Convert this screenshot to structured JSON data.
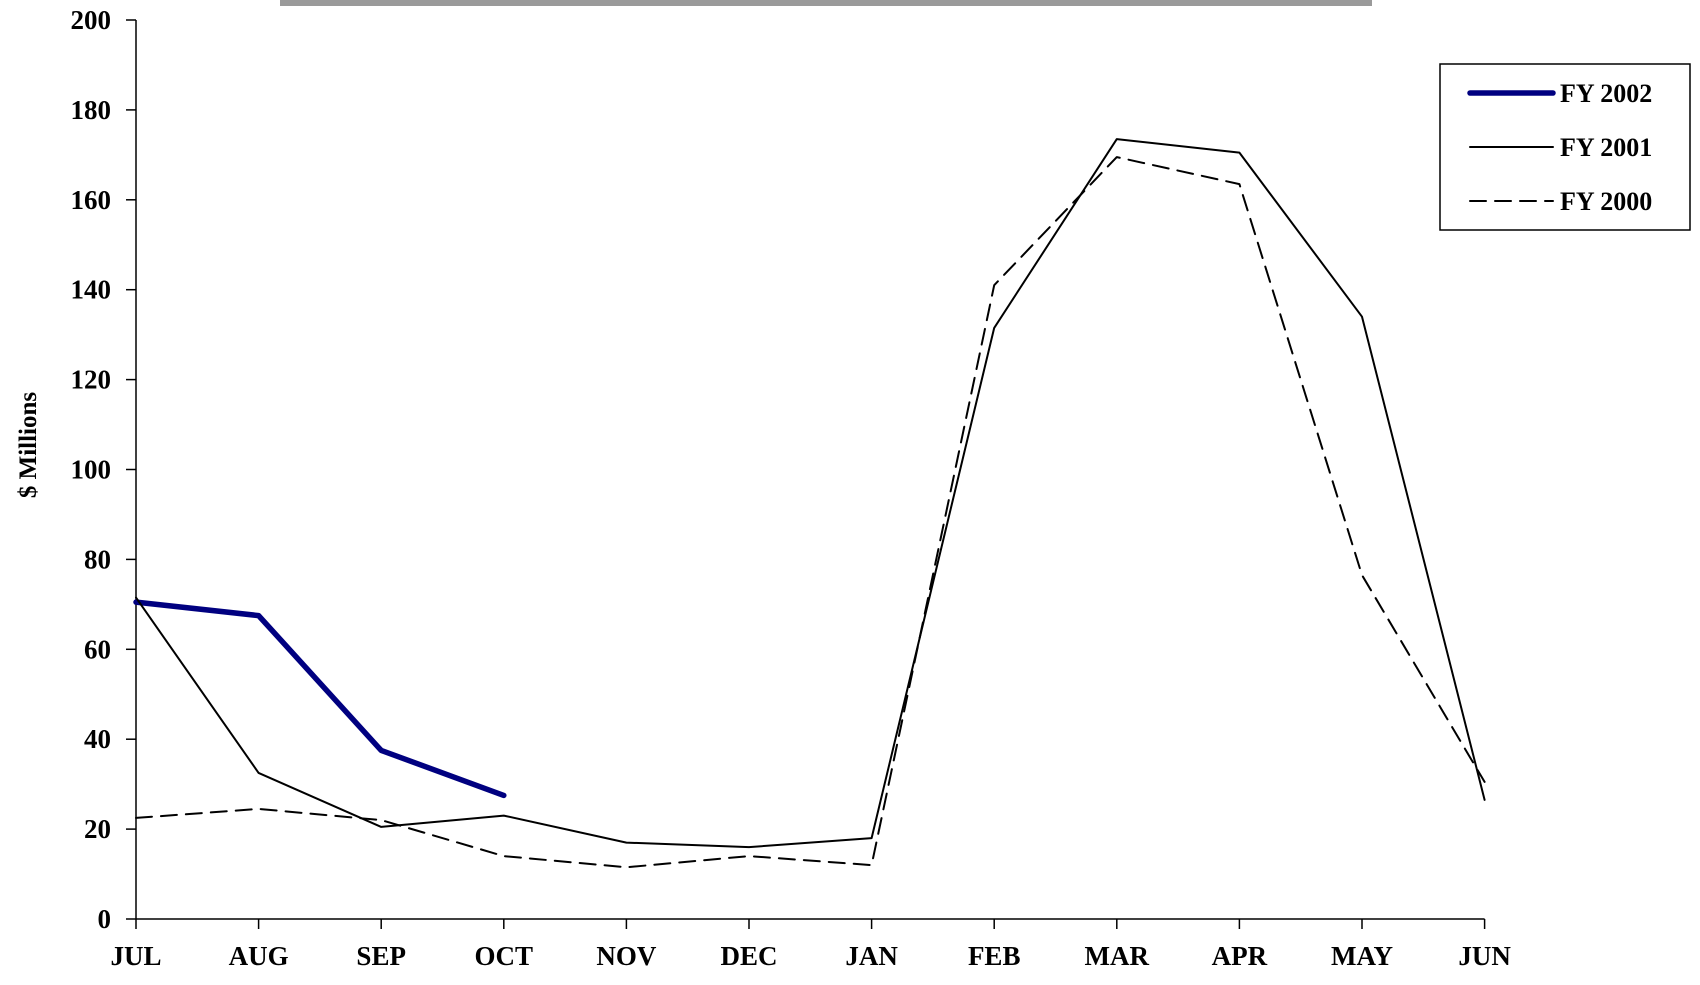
{
  "chart_data": {
    "type": "line",
    "title": "",
    "xlabel": "",
    "ylabel": "$ Millions",
    "categories": [
      "JUL",
      "AUG",
      "SEP",
      "OCT",
      "NOV",
      "DEC",
      "JAN",
      "FEB",
      "MAR",
      "APR",
      "MAY",
      "JUN"
    ],
    "ylim": [
      0,
      200
    ],
    "yticks": [
      "0",
      "20",
      "40",
      "60",
      "80",
      "100",
      "120",
      "140",
      "160",
      "180",
      "200"
    ],
    "grid": false,
    "legend_position": "top-right",
    "series": [
      {
        "name": "FY 2002",
        "style": "thick-solid",
        "color": "#000080",
        "values": [
          70.5,
          67.5,
          37.5,
          27.5,
          null,
          null,
          null,
          null,
          null,
          null,
          null,
          null
        ]
      },
      {
        "name": "FY 2001",
        "style": "solid",
        "color": "#000000",
        "values": [
          71.5,
          32.5,
          20.5,
          23,
          17,
          16,
          18,
          131.5,
          173.5,
          170.5,
          134,
          26.5
        ]
      },
      {
        "name": "FY 2000",
        "style": "dashed",
        "color": "#000000",
        "values": [
          22.5,
          24.5,
          22,
          14,
          11.5,
          14,
          12,
          141,
          169.5,
          163.5,
          76.5,
          30.5
        ]
      }
    ]
  }
}
